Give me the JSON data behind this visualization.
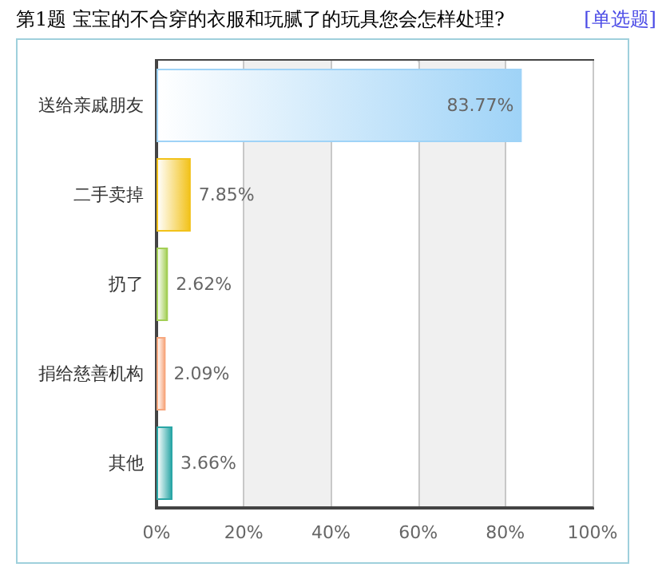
{
  "chart_data": {
    "type": "bar",
    "orientation": "horizontal",
    "title": "第1题   宝宝的不合穿的衣服和玩腻了的玩具您会怎样处理?",
    "subtitle": "[单选题]",
    "categories": [
      "送给亲戚朋友",
      "二手卖掉",
      "扔了",
      "捐给慈善机构",
      "其他"
    ],
    "values": [
      83.77,
      7.85,
      2.62,
      2.09,
      3.66
    ],
    "value_labels": [
      "83.77%",
      "7.85%",
      "2.62%",
      "2.09%",
      "3.66%"
    ],
    "colors": [
      "#9fd3f7",
      "#f2c21a",
      "#a3cf55",
      "#f7a77e",
      "#2aa6a6"
    ],
    "xlim": [
      0,
      100
    ],
    "xticks": [
      {
        "value": 0,
        "label": "0%"
      },
      {
        "value": 20,
        "label": "20%"
      },
      {
        "value": 40,
        "label": "40%"
      },
      {
        "value": 60,
        "label": "60%"
      },
      {
        "value": 80,
        "label": "80%"
      },
      {
        "value": 100,
        "label": "100%"
      }
    ],
    "grid": "x"
  }
}
